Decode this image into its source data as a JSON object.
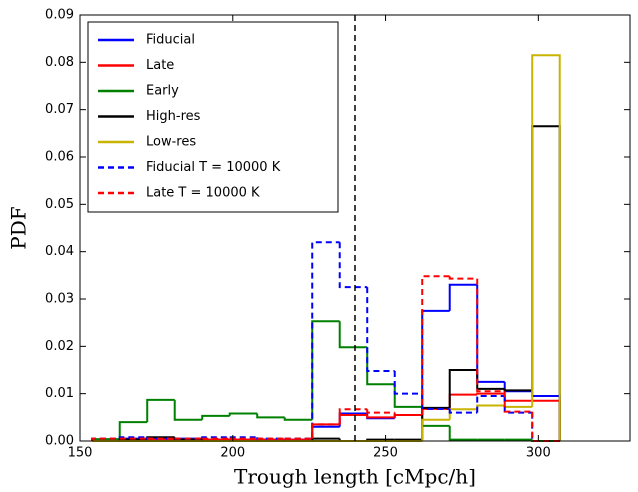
{
  "chart_data": {
    "type": "step-histogram",
    "xlabel": "Trough length [cMpc/h]",
    "ylabel": "PDF",
    "bins": [
      154,
      163,
      172,
      181,
      190,
      199,
      208,
      217,
      226,
      235,
      244,
      253,
      262,
      271,
      280,
      289,
      298,
      307
    ],
    "series": [
      {
        "name": "Fiducial",
        "color": "#0000ff",
        "linestyle": "solid",
        "values": [
          0.0003,
          0.0005,
          0.0005,
          0.0005,
          0.0003,
          0.0003,
          0.0003,
          0.0003,
          0.003,
          0.0058,
          0.0048,
          0.0055,
          0.0275,
          0.033,
          0.0125,
          0.0105,
          0.0095
        ]
      },
      {
        "name": "Late",
        "color": "#ff0000",
        "linestyle": "solid",
        "values": [
          0.0003,
          0.0003,
          0.0003,
          0.0003,
          0.0003,
          0.0003,
          0.0003,
          0.0003,
          0.0035,
          0.0055,
          0.005,
          0.0055,
          0.0068,
          0.0098,
          0.01,
          0.0085,
          0.0085
        ]
      },
      {
        "name": "Early",
        "color": "#008000",
        "linestyle": "solid",
        "values": [
          0.0004,
          0.004,
          0.0087,
          0.0045,
          0.0053,
          0.0058,
          0.005,
          0.0045,
          0.0253,
          0.0198,
          0.012,
          0.0072,
          0.0032,
          0.0003,
          0.0003,
          0.0003,
          0
        ]
      },
      {
        "name": "High-res",
        "color": "#000000",
        "linestyle": "solid",
        "values": [
          0,
          0.0003,
          0.0008,
          0.0003,
          0,
          0,
          0,
          0,
          0.0005,
          0,
          0.0003,
          0.0003,
          0.007,
          0.015,
          0.011,
          0.0107,
          0.0665
        ]
      },
      {
        "name": "Low-res",
        "color": "#c8b400",
        "linestyle": "solid",
        "values": [
          0,
          0,
          0,
          0,
          0,
          0,
          0,
          0,
          0,
          0,
          0,
          0,
          0.0045,
          0.0067,
          0.0075,
          0.0072,
          0.0815
        ]
      },
      {
        "name": "Fiducial T = 10000 K",
        "color": "#0000ff",
        "linestyle": "dashed",
        "values": [
          0.0005,
          0.0008,
          0.0005,
          0.0005,
          0.0008,
          0.0008,
          0.0005,
          0.0005,
          0.042,
          0.0325,
          0.0148,
          0.01,
          0.0068,
          0.006,
          0.0095,
          0.006,
          0
        ]
      },
      {
        "name": "Late T = 10000 K",
        "color": "#ff0000",
        "linestyle": "dashed",
        "values": [
          0.0005,
          0.0005,
          0.0005,
          0.0005,
          0.0005,
          0.0005,
          0.0005,
          0.0005,
          0.0035,
          0.0067,
          0.006,
          0.0055,
          0.0348,
          0.0343,
          0.0105,
          0.0062,
          0
        ]
      }
    ],
    "vline": {
      "x": 240,
      "color": "#000000",
      "linestyle": "dashed"
    },
    "xlim": [
      150,
      330
    ],
    "ylim": [
      0,
      0.09
    ],
    "xticks": [
      150,
      200,
      250,
      300
    ],
    "yticks": [
      {
        "value": 0,
        "label": "0.00"
      },
      {
        "value": 0.01,
        "label": "0.01"
      },
      {
        "value": 0.02,
        "label": "0.02"
      },
      {
        "value": 0.03,
        "label": "0.03"
      },
      {
        "value": 0.04,
        "label": "0.04"
      },
      {
        "value": 0.05,
        "label": "0.05"
      },
      {
        "value": 0.06,
        "label": "0.06"
      },
      {
        "value": 0.07,
        "label": "0.07"
      },
      {
        "value": 0.08,
        "label": "0.08"
      },
      {
        "value": 0.09,
        "label": "0.09"
      }
    ],
    "legend": "upper left"
  }
}
